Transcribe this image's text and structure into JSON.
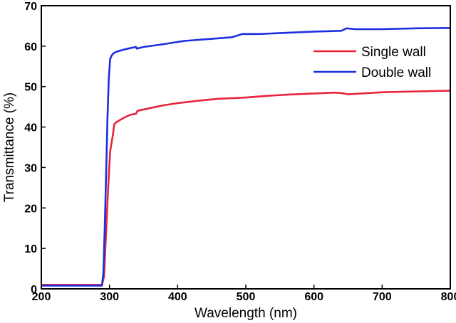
{
  "chart_data": {
    "type": "line",
    "title": "",
    "xlabel": "Wavelength (nm)",
    "ylabel": "Transmittance (%)",
    "xlim": [
      200,
      800
    ],
    "ylim": [
      0,
      70
    ],
    "xticks": [
      200,
      300,
      400,
      500,
      600,
      700,
      800
    ],
    "yticks": [
      0,
      10,
      20,
      30,
      40,
      50,
      60,
      70
    ],
    "grid": false,
    "legend_position": "top-right",
    "series": [
      {
        "name": "Single wall",
        "color": "#e8243a",
        "x": [
          200,
          250,
          289,
          292,
          295,
          298,
          301,
          305,
          307,
          310,
          320,
          330,
          339,
          341,
          360,
          380,
          400,
          430,
          460,
          490,
          500,
          530,
          560,
          600,
          630,
          640,
          650,
          700,
          750,
          800
        ],
        "y": [
          1,
          1,
          1,
          3,
          14,
          25,
          34,
          38,
          40.7,
          41.2,
          42.2,
          43,
          43.3,
          44,
          44.7,
          45.4,
          45.9,
          46.5,
          47,
          47.2,
          47.3,
          47.7,
          48,
          48.3,
          48.5,
          48.4,
          48.1,
          48.6,
          48.8,
          49
        ]
      },
      {
        "name": "Double wall",
        "color": "#1c2fe0",
        "x": [
          200,
          250,
          289,
          291,
          293,
          295,
          297,
          299,
          301,
          303,
          305,
          310,
          320,
          330,
          339,
          340,
          350,
          380,
          410,
          450,
          480,
          495,
          520,
          560,
          600,
          640,
          648,
          660,
          700,
          750,
          800
        ],
        "y": [
          0.8,
          0.8,
          0.8,
          4,
          15,
          28,
          42,
          52,
          56.8,
          57.6,
          58.1,
          58.6,
          59.1,
          59.5,
          59.8,
          59.4,
          59.8,
          60.5,
          61.3,
          61.8,
          62.2,
          63,
          63,
          63.3,
          63.6,
          63.8,
          64.4,
          64.2,
          64.2,
          64.4,
          64.5
        ]
      }
    ]
  }
}
